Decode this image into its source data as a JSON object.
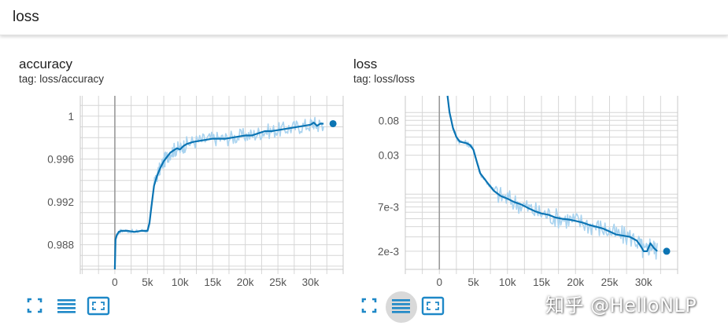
{
  "header": {
    "title": "loss"
  },
  "colors": {
    "line": "#0b74b3",
    "smooth_band": "#a9d3ef",
    "grid": "#d6d6d6",
    "active_button_bg": "#d9d9d9",
    "icon": "#1e88c7"
  },
  "cards": [
    {
      "title": "accuracy",
      "tag": "tag: loss/accuracy"
    },
    {
      "title": "loss",
      "tag": "tag: loss/loss"
    }
  ],
  "toolbar_icons": [
    "fullscreen-icon",
    "list-icon",
    "fit-domain-icon"
  ],
  "watermark": "知乎 @HelloNLP",
  "chart_data": [
    {
      "type": "line",
      "title": "accuracy",
      "x_ticks": [
        "0",
        "5k",
        "10k",
        "15k",
        "20k",
        "25k",
        "30k"
      ],
      "y_ticks": [
        "0.988",
        "0.992",
        "0.996",
        "1"
      ],
      "xlim": [
        -5300,
        35000
      ],
      "ylim": [
        0.9857,
        1.0019
      ],
      "grid": true,
      "series": [
        {
          "x": [
            0,
            100,
            300,
            600,
            1000,
            2000,
            3000,
            4000,
            5000,
            5300,
            5600,
            5800,
            6000,
            6500,
            7000,
            7500,
            8000,
            8500,
            9000,
            9500,
            10000,
            10500,
            11000,
            12000,
            13000,
            14000,
            15000,
            16000,
            17000,
            18000,
            19000,
            20000,
            21000,
            22000,
            23000,
            24000,
            25000,
            26000,
            27000,
            28000,
            29000,
            30000,
            30500,
            31000,
            31500,
            32000
          ],
          "y": [
            0.9857,
            0.9885,
            0.9889,
            0.9892,
            0.9893,
            0.9893,
            0.9892,
            0.9893,
            0.9893,
            0.99,
            0.9915,
            0.9925,
            0.9935,
            0.9945,
            0.9952,
            0.9958,
            0.9962,
            0.9966,
            0.9968,
            0.997,
            0.9969,
            0.9972,
            0.9974,
            0.9976,
            0.9977,
            0.9978,
            0.9979,
            0.9979,
            0.9979,
            0.998,
            0.9981,
            0.9982,
            0.9982,
            0.9984,
            0.9986,
            0.9986,
            0.9987,
            0.9988,
            0.9989,
            0.999,
            0.9991,
            0.9992,
            0.9994,
            0.9991,
            0.9993,
            0.9993
          ]
        }
      ]
    },
    {
      "type": "line",
      "title": "loss",
      "y_scale": "log",
      "x_ticks": [
        "0",
        "5k",
        "10k",
        "15k",
        "20k",
        "25k",
        "30k"
      ],
      "y_ticks": [
        "2e-3",
        "7e-3",
        "0.03",
        "0.08"
      ],
      "xlim": [
        -5000,
        35000
      ],
      "ylim": [
        0.0012,
        0.16
      ],
      "grid": true,
      "series": [
        {
          "x": [
            1200,
            1500,
            2000,
            2500,
            3000,
            4000,
            4500,
            5000,
            5500,
            6000,
            7000,
            8000,
            9000,
            10000,
            11000,
            12000,
            13000,
            14000,
            15000,
            16000,
            17000,
            18000,
            19000,
            20000,
            21000,
            22000,
            23000,
            24000,
            25000,
            26000,
            27000,
            28000,
            29000,
            29600,
            30000,
            30500,
            31000,
            31500,
            32000
          ],
          "y": [
            0.16,
            0.1,
            0.065,
            0.05,
            0.044,
            0.042,
            0.04,
            0.035,
            0.025,
            0.018,
            0.014,
            0.011,
            0.0095,
            0.0088,
            0.008,
            0.0075,
            0.0068,
            0.0062,
            0.0058,
            0.0056,
            0.0052,
            0.005,
            0.0049,
            0.0047,
            0.0045,
            0.0042,
            0.004,
            0.0038,
            0.0035,
            0.0032,
            0.0031,
            0.003,
            0.0027,
            0.0023,
            0.002,
            0.002,
            0.0025,
            0.0022,
            0.002
          ]
        }
      ]
    }
  ]
}
